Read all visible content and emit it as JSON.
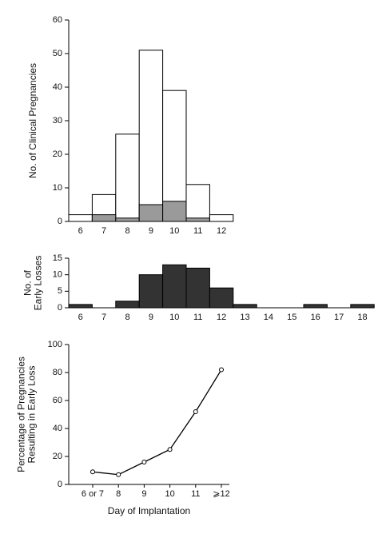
{
  "chart_data": [
    {
      "type": "bar",
      "y_label": [
        "No. of Clinical Pregnancies"
      ],
      "categories": [
        "6",
        "7",
        "8",
        "9",
        "10",
        "11",
        "12"
      ],
      "series": [
        {
          "color": "#ffffff",
          "values": [
            2,
            8,
            26,
            51,
            39,
            11,
            2
          ]
        },
        {
          "color": "#9a9a9a",
          "values": [
            0,
            2,
            1,
            5,
            6,
            1,
            0
          ]
        }
      ],
      "ylim": [
        0,
        60
      ],
      "yticks": [
        0,
        10,
        20,
        30,
        40,
        50,
        60
      ]
    },
    {
      "type": "bar",
      "y_label": [
        "No. of",
        "Early Losses"
      ],
      "categories": [
        "6",
        "7",
        "8",
        "9",
        "10",
        "11",
        "12",
        "13",
        "14",
        "15",
        "16",
        "17",
        "18"
      ],
      "series": [
        {
          "color": "#333333",
          "values": [
            1,
            0,
            2,
            10,
            13,
            12,
            6,
            1,
            0,
            0,
            1,
            0,
            1
          ]
        }
      ],
      "ylim": [
        0,
        15
      ],
      "yticks": [
        0,
        5,
        10,
        15
      ]
    },
    {
      "type": "line",
      "y_label": [
        "Percentage of Pregnancies",
        "Resulting in Early Loss"
      ],
      "x_label": "Day of Implantation",
      "categories": [
        "6 or 7",
        "8",
        "9",
        "10",
        "11",
        "⩾12"
      ],
      "series": [
        {
          "color": "#000000",
          "values": [
            9,
            7,
            16,
            25,
            52,
            82
          ]
        }
      ],
      "ylim": [
        0,
        100
      ],
      "yticks": [
        0,
        20,
        40,
        60,
        80,
        100
      ]
    }
  ]
}
